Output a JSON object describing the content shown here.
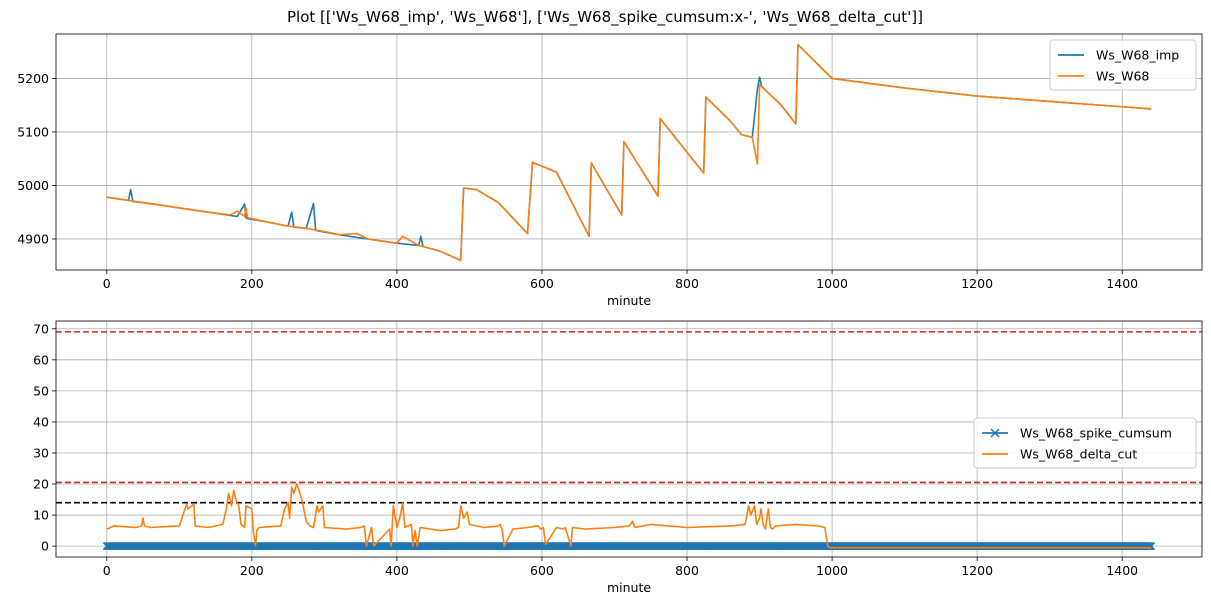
{
  "figure": {
    "title": "Plot [['Ws_W68_imp', 'Ws_W68'], ['Ws_W68_spike_cumsum:x-', 'Ws_W68_delta_cut']]"
  },
  "colors": {
    "blue": "#1f77b4",
    "orange": "#ff7f0e",
    "red": "#d62728",
    "black": "#000000",
    "grid": "#b0b0b0"
  },
  "chart_data": [
    {
      "type": "line",
      "xlabel": "minute",
      "ylabel": "",
      "xlim": [
        -70,
        1510
      ],
      "ylim": [
        4842,
        5283
      ],
      "xticks": [
        0,
        200,
        400,
        600,
        800,
        1000,
        1200,
        1400
      ],
      "yticks": [
        4900,
        5000,
        5100,
        5200
      ],
      "grid": true,
      "legend": "top-right",
      "series": [
        {
          "name": "Ws_W68_imp",
          "color": "#1f77b4",
          "x": [
            0,
            30,
            33,
            36,
            60,
            100,
            140,
            180,
            190,
            192,
            194,
            220,
            250,
            255,
            258,
            275,
            285,
            288,
            291,
            320,
            360,
            400,
            430,
            433,
            436,
            460,
            488,
            492,
            510,
            540,
            580,
            587,
            620,
            665,
            668,
            710,
            713,
            760,
            763,
            823,
            826,
            860,
            875,
            890,
            897,
            900,
            903,
            930,
            950,
            953,
            1000,
            1100,
            1200,
            1300,
            1440
          ],
          "y": [
            4978,
            4972,
            4992,
            4970,
            4966,
            4958,
            4950,
            4942,
            4965,
            4940,
            4938,
            4932,
            4924,
            4950,
            4922,
            4920,
            4966,
            4916,
            4915,
            4908,
            4900,
            4892,
            4888,
            4905,
            4886,
            4877,
            4860,
            4995,
            4992,
            4968,
            4910,
            5043,
            5025,
            4905,
            5042,
            4945,
            5082,
            4980,
            5125,
            5023,
            5165,
            5120,
            5095,
            5090,
            5180,
            5202,
            5185,
            5150,
            5115,
            5263,
            5200,
            5182,
            5167,
            5157,
            5143
          ]
        },
        {
          "name": "Ws_W68",
          "color": "#ff7f0e",
          "x": [
            0,
            30,
            60,
            100,
            140,
            170,
            180,
            190,
            192,
            194,
            220,
            250,
            275,
            300,
            320,
            345,
            360,
            400,
            408,
            430,
            460,
            488,
            492,
            510,
            540,
            580,
            587,
            620,
            665,
            668,
            710,
            713,
            760,
            763,
            823,
            826,
            860,
            875,
            890,
            897,
            900,
            930,
            950,
            953,
            1000,
            1100,
            1200,
            1300,
            1440
          ],
          "y": [
            4978,
            4972,
            4966,
            4958,
            4950,
            4945,
            4952,
            4942,
            4958,
            4940,
            4932,
            4924,
            4920,
            4914,
            4908,
            4910,
            4900,
            4892,
            4905,
            4888,
            4877,
            4860,
            4995,
            4992,
            4968,
            4910,
            5043,
            5025,
            4905,
            5042,
            4945,
            5082,
            4980,
            5125,
            5023,
            5165,
            5120,
            5095,
            5090,
            5040,
            5188,
            5150,
            5115,
            5263,
            5200,
            5182,
            5167,
            5157,
            5143
          ]
        }
      ]
    },
    {
      "type": "line",
      "xlabel": "minute",
      "ylabel": "",
      "xlim": [
        -70,
        1510
      ],
      "ylim": [
        -3.5,
        72.5
      ],
      "xticks": [
        0,
        200,
        400,
        600,
        800,
        1000,
        1200,
        1400
      ],
      "yticks": [
        0,
        10,
        20,
        30,
        40,
        50,
        60,
        70
      ],
      "grid": true,
      "legend": "center-right",
      "hlines": [
        {
          "y": 69,
          "color": "#d62728",
          "style": "dashed"
        },
        {
          "y": 20.5,
          "color": "#d62728",
          "style": "dashed"
        },
        {
          "y": 14,
          "color": "#000000",
          "style": "dashed"
        }
      ],
      "series": [
        {
          "name": "Ws_W68_spike_cumsum",
          "color": "#1f77b4",
          "marker": "x",
          "x_range": [
            0,
            1440
          ],
          "y_constant": 0
        },
        {
          "name": "Ws_W68_delta_cut",
          "color": "#ff7f0e",
          "x": [
            0,
            10,
            40,
            48,
            50,
            52,
            60,
            100,
            110,
            112,
            120,
            122,
            140,
            160,
            165,
            168,
            172,
            175,
            178,
            182,
            185,
            190,
            192,
            200,
            202,
            205,
            207,
            210,
            240,
            245,
            250,
            252,
            255,
            258,
            262,
            265,
            270,
            275,
            280,
            285,
            290,
            292,
            298,
            300,
            330,
            350,
            355,
            358,
            365,
            368,
            390,
            392,
            395,
            400,
            405,
            408,
            411,
            420,
            422,
            425,
            428,
            432,
            460,
            480,
            485,
            488,
            492,
            497,
            500,
            520,
            540,
            542,
            545,
            548,
            560,
            580,
            595,
            598,
            602,
            605,
            620,
            630,
            632,
            640,
            642,
            660,
            700,
            720,
            722,
            725,
            728,
            750,
            800,
            860,
            880,
            885,
            888,
            893,
            896,
            900,
            902,
            905,
            908,
            912,
            915,
            918,
            922,
            950,
            980,
            990,
            994,
            996,
            1440
          ],
          "y": [
            5.5,
            6.5,
            6,
            6.5,
            9,
            6.5,
            6,
            6.5,
            13.5,
            12,
            13.5,
            6.5,
            6,
            7,
            12,
            17,
            13,
            18,
            15,
            13,
            7,
            6,
            13,
            12,
            5,
            0,
            5,
            6,
            6.5,
            12,
            14,
            9,
            19,
            17,
            20,
            18,
            14,
            8,
            6.5,
            6,
            13,
            11,
            13,
            6,
            5.5,
            6,
            6.5,
            0,
            6,
            0,
            5.5,
            0,
            13,
            6,
            10,
            14,
            6,
            7,
            0,
            5,
            0,
            6,
            5,
            5.5,
            6,
            13,
            9,
            11,
            7,
            6,
            6.5,
            7,
            5.5,
            0,
            5.5,
            6,
            6.5,
            5.5,
            6,
            0.5,
            6,
            5.5,
            6,
            0,
            6,
            5.5,
            6,
            6.5,
            7,
            8,
            6,
            7,
            6,
            6.5,
            7,
            13,
            10,
            13,
            7,
            9,
            12,
            7,
            5.5,
            12,
            6,
            5.5,
            6.5,
            7,
            6.5,
            6,
            0,
            -0.5,
            -0.5
          ]
        }
      ]
    }
  ]
}
